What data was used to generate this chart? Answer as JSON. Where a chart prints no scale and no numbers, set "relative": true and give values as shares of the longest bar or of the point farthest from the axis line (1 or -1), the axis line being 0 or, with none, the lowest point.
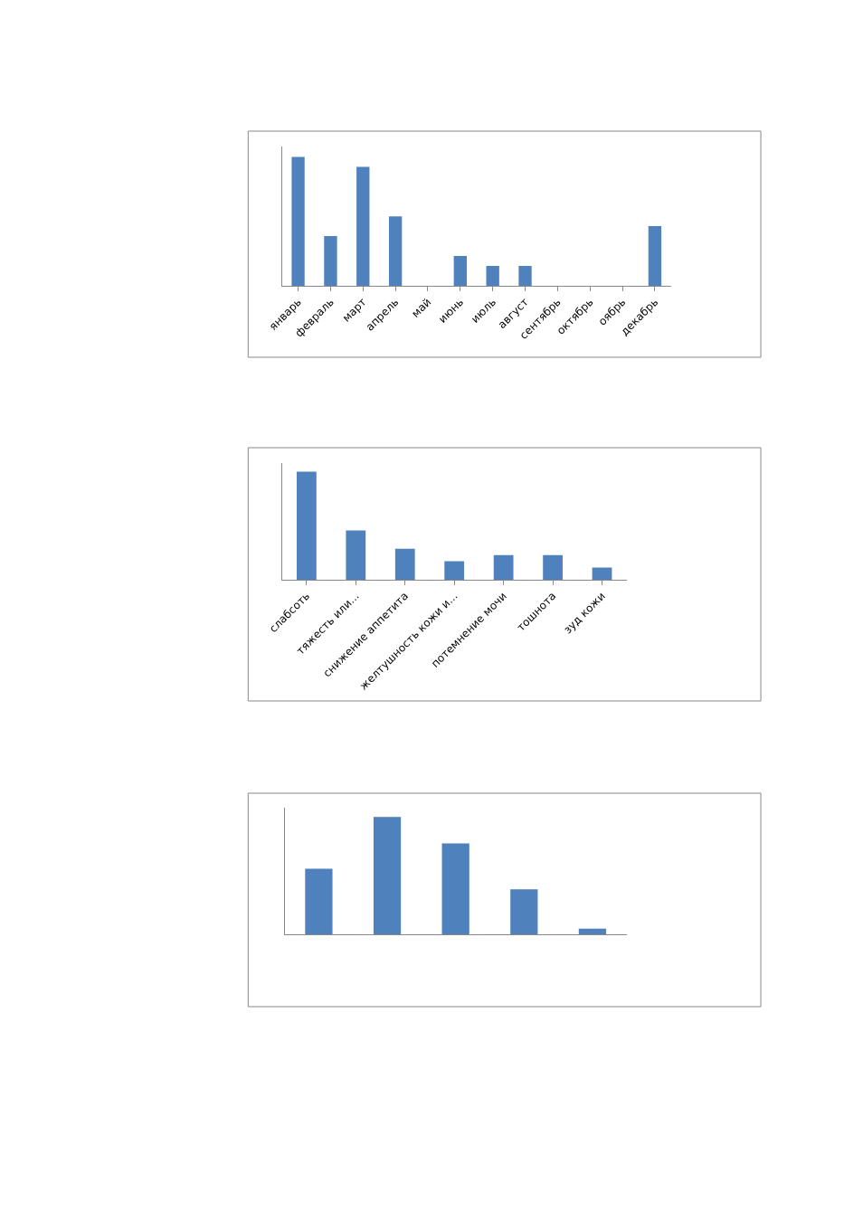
{
  "chart_data": [
    {
      "type": "bar",
      "relative": true,
      "categories": [
        "январь",
        "февраль",
        "март",
        "апрель",
        "май",
        "июнь",
        "июль",
        "август",
        "сентябрь",
        "октябрь",
        "оябрь",
        "декабрь"
      ],
      "series": [
        {
          "color": "#4f81bd",
          "values": [
            1,
            0.385,
            0.923,
            0.538,
            0,
            0.231,
            0.154,
            0.154,
            0,
            0,
            0,
            0.462
          ]
        }
      ]
    },
    {
      "type": "bar",
      "relative": true,
      "categories": [
        "слабсоть",
        "тяжесть или...",
        "снижение аппетита",
        "желтушность кожи и...",
        "потемнение мочи",
        "тошнота",
        "зуд кожи"
      ],
      "series": [
        {
          "color": "#4f81bd",
          "values": [
            1,
            0.457,
            0.286,
            0.171,
            0.229,
            0.229,
            0.114
          ]
        }
      ]
    },
    {
      "type": "bar",
      "relative": true,
      "categories": [
        null,
        null,
        null,
        null,
        null
      ],
      "series": [
        {
          "color": "#4f81bd",
          "values": [
            0.56,
            1,
            0.776,
            0.384,
            0.048
          ]
        }
      ]
    }
  ]
}
